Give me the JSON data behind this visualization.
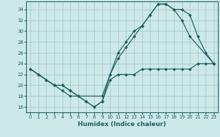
{
  "xlabel": "Humidex (Indice chaleur)",
  "ylabel": "",
  "xlim": [
    -0.5,
    23.5
  ],
  "ylim": [
    15,
    35.5
  ],
  "yticks": [
    16,
    18,
    20,
    22,
    24,
    26,
    28,
    30,
    32,
    34
  ],
  "xticks": [
    0,
    1,
    2,
    3,
    4,
    5,
    6,
    7,
    8,
    9,
    10,
    11,
    12,
    13,
    14,
    15,
    16,
    17,
    18,
    19,
    20,
    21,
    22,
    23
  ],
  "bg_color": "#cce8e8",
  "grid_color": "#aacccc",
  "line_color": "#206060",
  "line1_x": [
    0,
    1,
    2,
    3,
    4,
    5,
    6,
    7,
    8,
    9,
    10,
    11,
    12,
    13,
    14,
    15,
    16,
    17,
    18,
    19,
    20,
    21,
    22,
    23
  ],
  "line1_y": [
    23,
    22,
    21,
    20,
    20,
    19,
    18,
    17,
    16,
    17,
    21,
    22,
    22,
    22,
    23,
    23,
    23,
    23,
    23,
    23,
    23,
    24,
    24,
    24
  ],
  "line2_x": [
    0,
    1,
    2,
    3,
    4,
    5,
    6,
    7,
    8,
    9,
    10,
    11,
    12,
    13,
    14,
    15,
    16,
    17,
    18,
    19,
    20,
    21,
    22,
    23
  ],
  "line2_y": [
    23,
    22,
    21,
    20,
    20,
    19,
    18,
    17,
    16,
    17,
    22,
    26,
    28,
    30,
    31,
    33,
    35,
    35,
    34,
    34,
    33,
    29,
    26,
    24
  ],
  "line3_x": [
    0,
    1,
    2,
    3,
    4,
    5,
    9,
    10,
    11,
    12,
    13,
    14,
    15,
    16,
    17,
    18,
    19,
    20,
    23
  ],
  "line3_y": [
    23,
    22,
    21,
    20,
    19,
    18,
    18,
    22,
    25,
    27,
    29,
    31,
    33,
    35,
    35,
    34,
    32,
    29,
    24
  ]
}
